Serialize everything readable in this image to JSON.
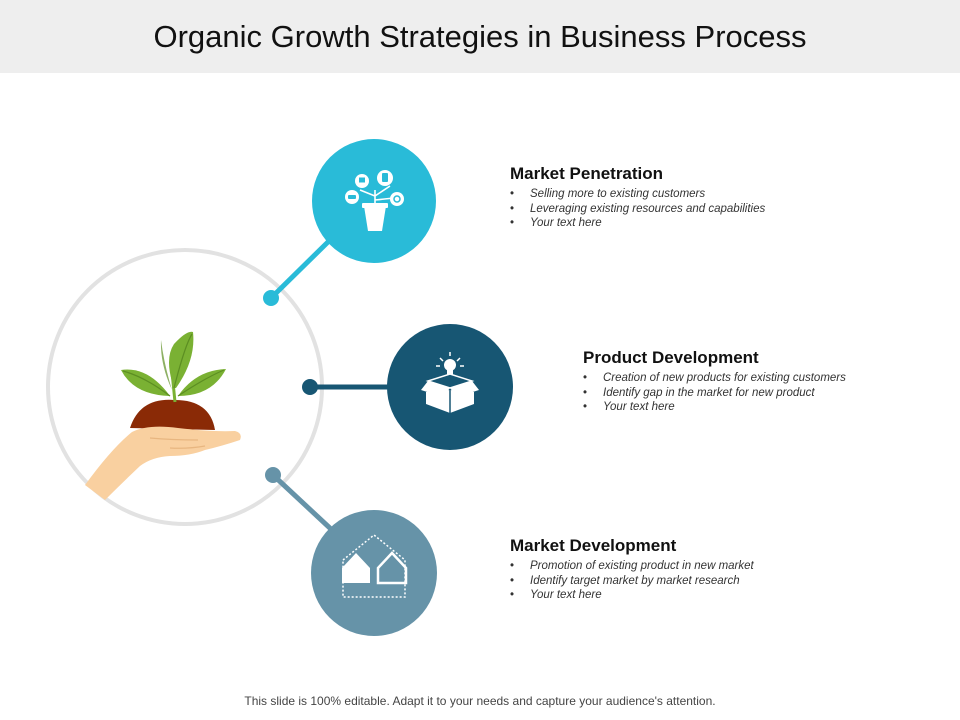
{
  "title": "Organic Growth Strategies in Business Process",
  "colors": {
    "penetration": "#29BBD8",
    "product": "#175673",
    "market_dev": "#6693A8",
    "ring": "#e2e2e2",
    "leaf": "#7AB133",
    "soil": "#8A2A06",
    "hand": "#F9D0A0"
  },
  "items": [
    {
      "heading": "Market Penetration",
      "icon": "plant-devices-icon",
      "bullets": [
        "Selling more to existing customers",
        "Leveraging existing resources and capabilities",
        "Your text here"
      ]
    },
    {
      "heading": "Product Development",
      "icon": "box-lightbulb-icon",
      "bullets": [
        "Creation of new products for existing customers",
        "Identify gap in the market for new product",
        "Your text here"
      ]
    },
    {
      "heading": "Market Development",
      "icon": "houses-icon",
      "bullets": [
        "Promotion of existing product in new market",
        "Identify target market  by market research",
        "Your text here"
      ]
    }
  ],
  "center_icon": "hand-sprout-icon",
  "footer": "This slide is 100% editable. Adapt it to your needs and capture your audience's attention."
}
